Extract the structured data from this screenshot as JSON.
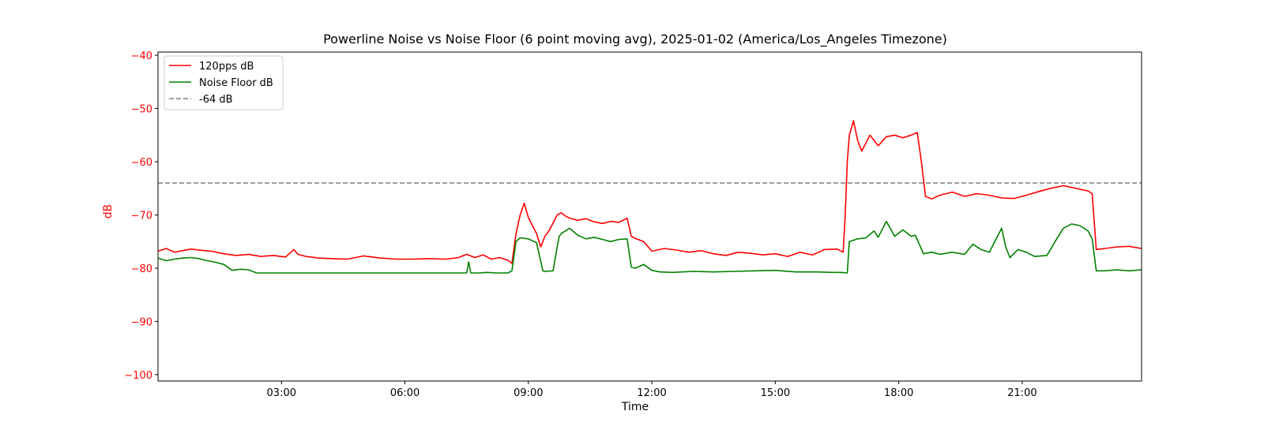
{
  "chart_data": {
    "type": "line",
    "title": "Powerline Noise vs Noise Floor (6 point moving avg), 2025-01-02 (America/Los_Angeles Timezone)",
    "xlabel": "Time",
    "ylabel": "dB",
    "x_unit": "hours",
    "xlim": [
      0.0,
      23.9
    ],
    "ylim": [
      -101.2,
      -39.4
    ],
    "x_ticks": [
      3,
      6,
      9,
      12,
      15,
      18,
      21
    ],
    "x_tick_labels": [
      "03:00",
      "06:00",
      "09:00",
      "12:00",
      "15:00",
      "18:00",
      "21:00"
    ],
    "y_ticks": [
      -40,
      -50,
      -60,
      -70,
      -80,
      -90,
      -100
    ],
    "y_tick_labels": [
      "−40",
      "−50",
      "−60",
      "−70",
      "−80",
      "−90",
      "−100"
    ],
    "grid": false,
    "legend_position": "top-left",
    "colors": {
      "series_1": "#ff0000",
      "series_2": "#008000",
      "reference": "#808080",
      "ylabel": "#ff0000"
    },
    "series": [
      {
        "name": "120pps dB",
        "x": [
          0.0,
          0.2,
          0.4,
          0.6,
          0.8,
          1.0,
          1.3,
          1.6,
          1.9,
          2.2,
          2.5,
          2.8,
          3.1,
          3.3,
          3.4,
          3.6,
          3.9,
          4.2,
          4.6,
          5.0,
          5.4,
          5.8,
          6.2,
          6.6,
          7.0,
          7.3,
          7.5,
          7.7,
          7.9,
          8.1,
          8.3,
          8.5,
          8.6,
          8.7,
          8.8,
          8.9,
          9.0,
          9.1,
          9.2,
          9.3,
          9.4,
          9.5,
          9.6,
          9.7,
          9.8,
          9.9,
          10.0,
          10.2,
          10.4,
          10.6,
          10.8,
          11.0,
          11.2,
          11.4,
          11.5,
          11.6,
          11.8,
          12.0,
          12.3,
          12.6,
          12.9,
          13.2,
          13.5,
          13.8,
          14.1,
          14.4,
          14.7,
          15.0,
          15.3,
          15.6,
          15.9,
          16.2,
          16.5,
          16.65,
          16.7,
          16.75,
          16.8,
          16.9,
          17.0,
          17.1,
          17.3,
          17.5,
          17.7,
          17.9,
          18.1,
          18.3,
          18.45,
          18.55,
          18.65,
          18.8,
          19.0,
          19.3,
          19.6,
          19.9,
          20.2,
          20.5,
          20.8,
          21.1,
          21.4,
          21.7,
          22.0,
          22.3,
          22.6,
          22.7,
          22.8,
          23.0,
          23.3,
          23.6,
          23.9
        ],
        "values": [
          -76.8,
          -76.3,
          -77.0,
          -76.7,
          -76.4,
          -76.6,
          -76.8,
          -77.3,
          -77.6,
          -77.4,
          -77.8,
          -77.6,
          -77.9,
          -76.5,
          -77.4,
          -77.8,
          -78.1,
          -78.2,
          -78.3,
          -77.7,
          -78.1,
          -78.3,
          -78.3,
          -78.2,
          -78.3,
          -78.0,
          -77.4,
          -78.0,
          -77.5,
          -78.3,
          -78.0,
          -78.5,
          -79.1,
          -73.5,
          -70.0,
          -67.8,
          -70.5,
          -72.0,
          -73.5,
          -76.0,
          -74.0,
          -73.0,
          -71.5,
          -70.0,
          -69.6,
          -70.2,
          -70.6,
          -71.0,
          -70.7,
          -71.3,
          -71.6,
          -71.2,
          -71.4,
          -70.6,
          -74.0,
          -74.4,
          -75.0,
          -76.8,
          -76.3,
          -76.6,
          -77.0,
          -76.7,
          -77.3,
          -77.6,
          -77.0,
          -77.2,
          -77.5,
          -77.3,
          -77.8,
          -77.0,
          -77.5,
          -76.5,
          -76.4,
          -77.0,
          -70.0,
          -60.0,
          -55.0,
          -52.3,
          -56.0,
          -58.0,
          -55.0,
          -57.0,
          -55.3,
          -55.0,
          -55.5,
          -55.0,
          -54.5,
          -60.0,
          -66.5,
          -67.0,
          -66.3,
          -65.7,
          -66.5,
          -66.0,
          -66.3,
          -66.8,
          -66.9,
          -66.3,
          -65.6,
          -65.0,
          -64.5,
          -65.0,
          -65.5,
          -66.0,
          -76.5,
          -76.3,
          -76.0,
          -75.9,
          -76.3
        ]
      },
      {
        "name": "Noise Floor dB",
        "x": [
          0.0,
          0.2,
          0.4,
          0.6,
          0.8,
          1.0,
          1.2,
          1.4,
          1.6,
          1.8,
          2.0,
          2.2,
          2.4,
          2.6,
          2.8,
          3.0,
          3.5,
          4.0,
          4.5,
          5.0,
          5.5,
          6.0,
          6.5,
          7.0,
          7.5,
          7.55,
          7.6,
          7.8,
          8.0,
          8.2,
          8.5,
          8.6,
          8.7,
          8.8,
          9.0,
          9.2,
          9.35,
          9.4,
          9.6,
          9.7,
          9.75,
          9.8,
          10.0,
          10.2,
          10.4,
          10.6,
          10.8,
          11.0,
          11.2,
          11.4,
          11.5,
          11.6,
          11.8,
          12.0,
          12.2,
          12.5,
          13.0,
          13.5,
          14.0,
          14.5,
          15.0,
          15.5,
          16.0,
          16.4,
          16.6,
          16.75,
          16.8,
          17.0,
          17.2,
          17.4,
          17.5,
          17.7,
          17.9,
          18.1,
          18.3,
          18.4,
          18.5,
          18.6,
          18.8,
          19.0,
          19.3,
          19.6,
          19.8,
          20.0,
          20.2,
          20.4,
          20.5,
          20.6,
          20.7,
          20.9,
          21.1,
          21.3,
          21.6,
          21.8,
          22.0,
          22.2,
          22.4,
          22.6,
          22.7,
          22.8,
          23.0,
          23.3,
          23.6,
          23.9
        ],
        "values": [
          -78.1,
          -78.6,
          -78.3,
          -78.1,
          -78.0,
          -78.2,
          -78.6,
          -78.9,
          -79.3,
          -80.4,
          -80.2,
          -80.3,
          -80.9,
          -80.9,
          -80.9,
          -80.9,
          -80.9,
          -80.9,
          -80.9,
          -80.9,
          -80.9,
          -80.9,
          -80.9,
          -80.9,
          -80.9,
          -78.8,
          -80.9,
          -80.9,
          -80.8,
          -80.9,
          -80.9,
          -80.5,
          -75.0,
          -74.3,
          -74.5,
          -75.2,
          -80.5,
          -80.6,
          -80.5,
          -76.0,
          -74.0,
          -73.5,
          -72.5,
          -73.8,
          -74.5,
          -74.2,
          -74.6,
          -75.0,
          -74.6,
          -74.5,
          -79.8,
          -80.0,
          -79.3,
          -80.4,
          -80.7,
          -80.8,
          -80.6,
          -80.7,
          -80.6,
          -80.5,
          -80.4,
          -80.7,
          -80.7,
          -80.8,
          -80.8,
          -80.9,
          -75.0,
          -74.5,
          -74.3,
          -73.0,
          -74.2,
          -71.2,
          -74.0,
          -72.8,
          -74.0,
          -73.8,
          -75.5,
          -77.3,
          -77.0,
          -77.4,
          -77.0,
          -77.4,
          -75.5,
          -76.5,
          -77.0,
          -74.0,
          -72.5,
          -76.0,
          -78.0,
          -76.5,
          -77.0,
          -77.8,
          -77.6,
          -75.0,
          -72.5,
          -71.7,
          -72.0,
          -73.0,
          -74.5,
          -80.5,
          -80.5,
          -80.3,
          -80.5,
          -80.3
        ]
      }
    ],
    "reference_line": {
      "name": "-64 dB",
      "y": -64
    }
  }
}
